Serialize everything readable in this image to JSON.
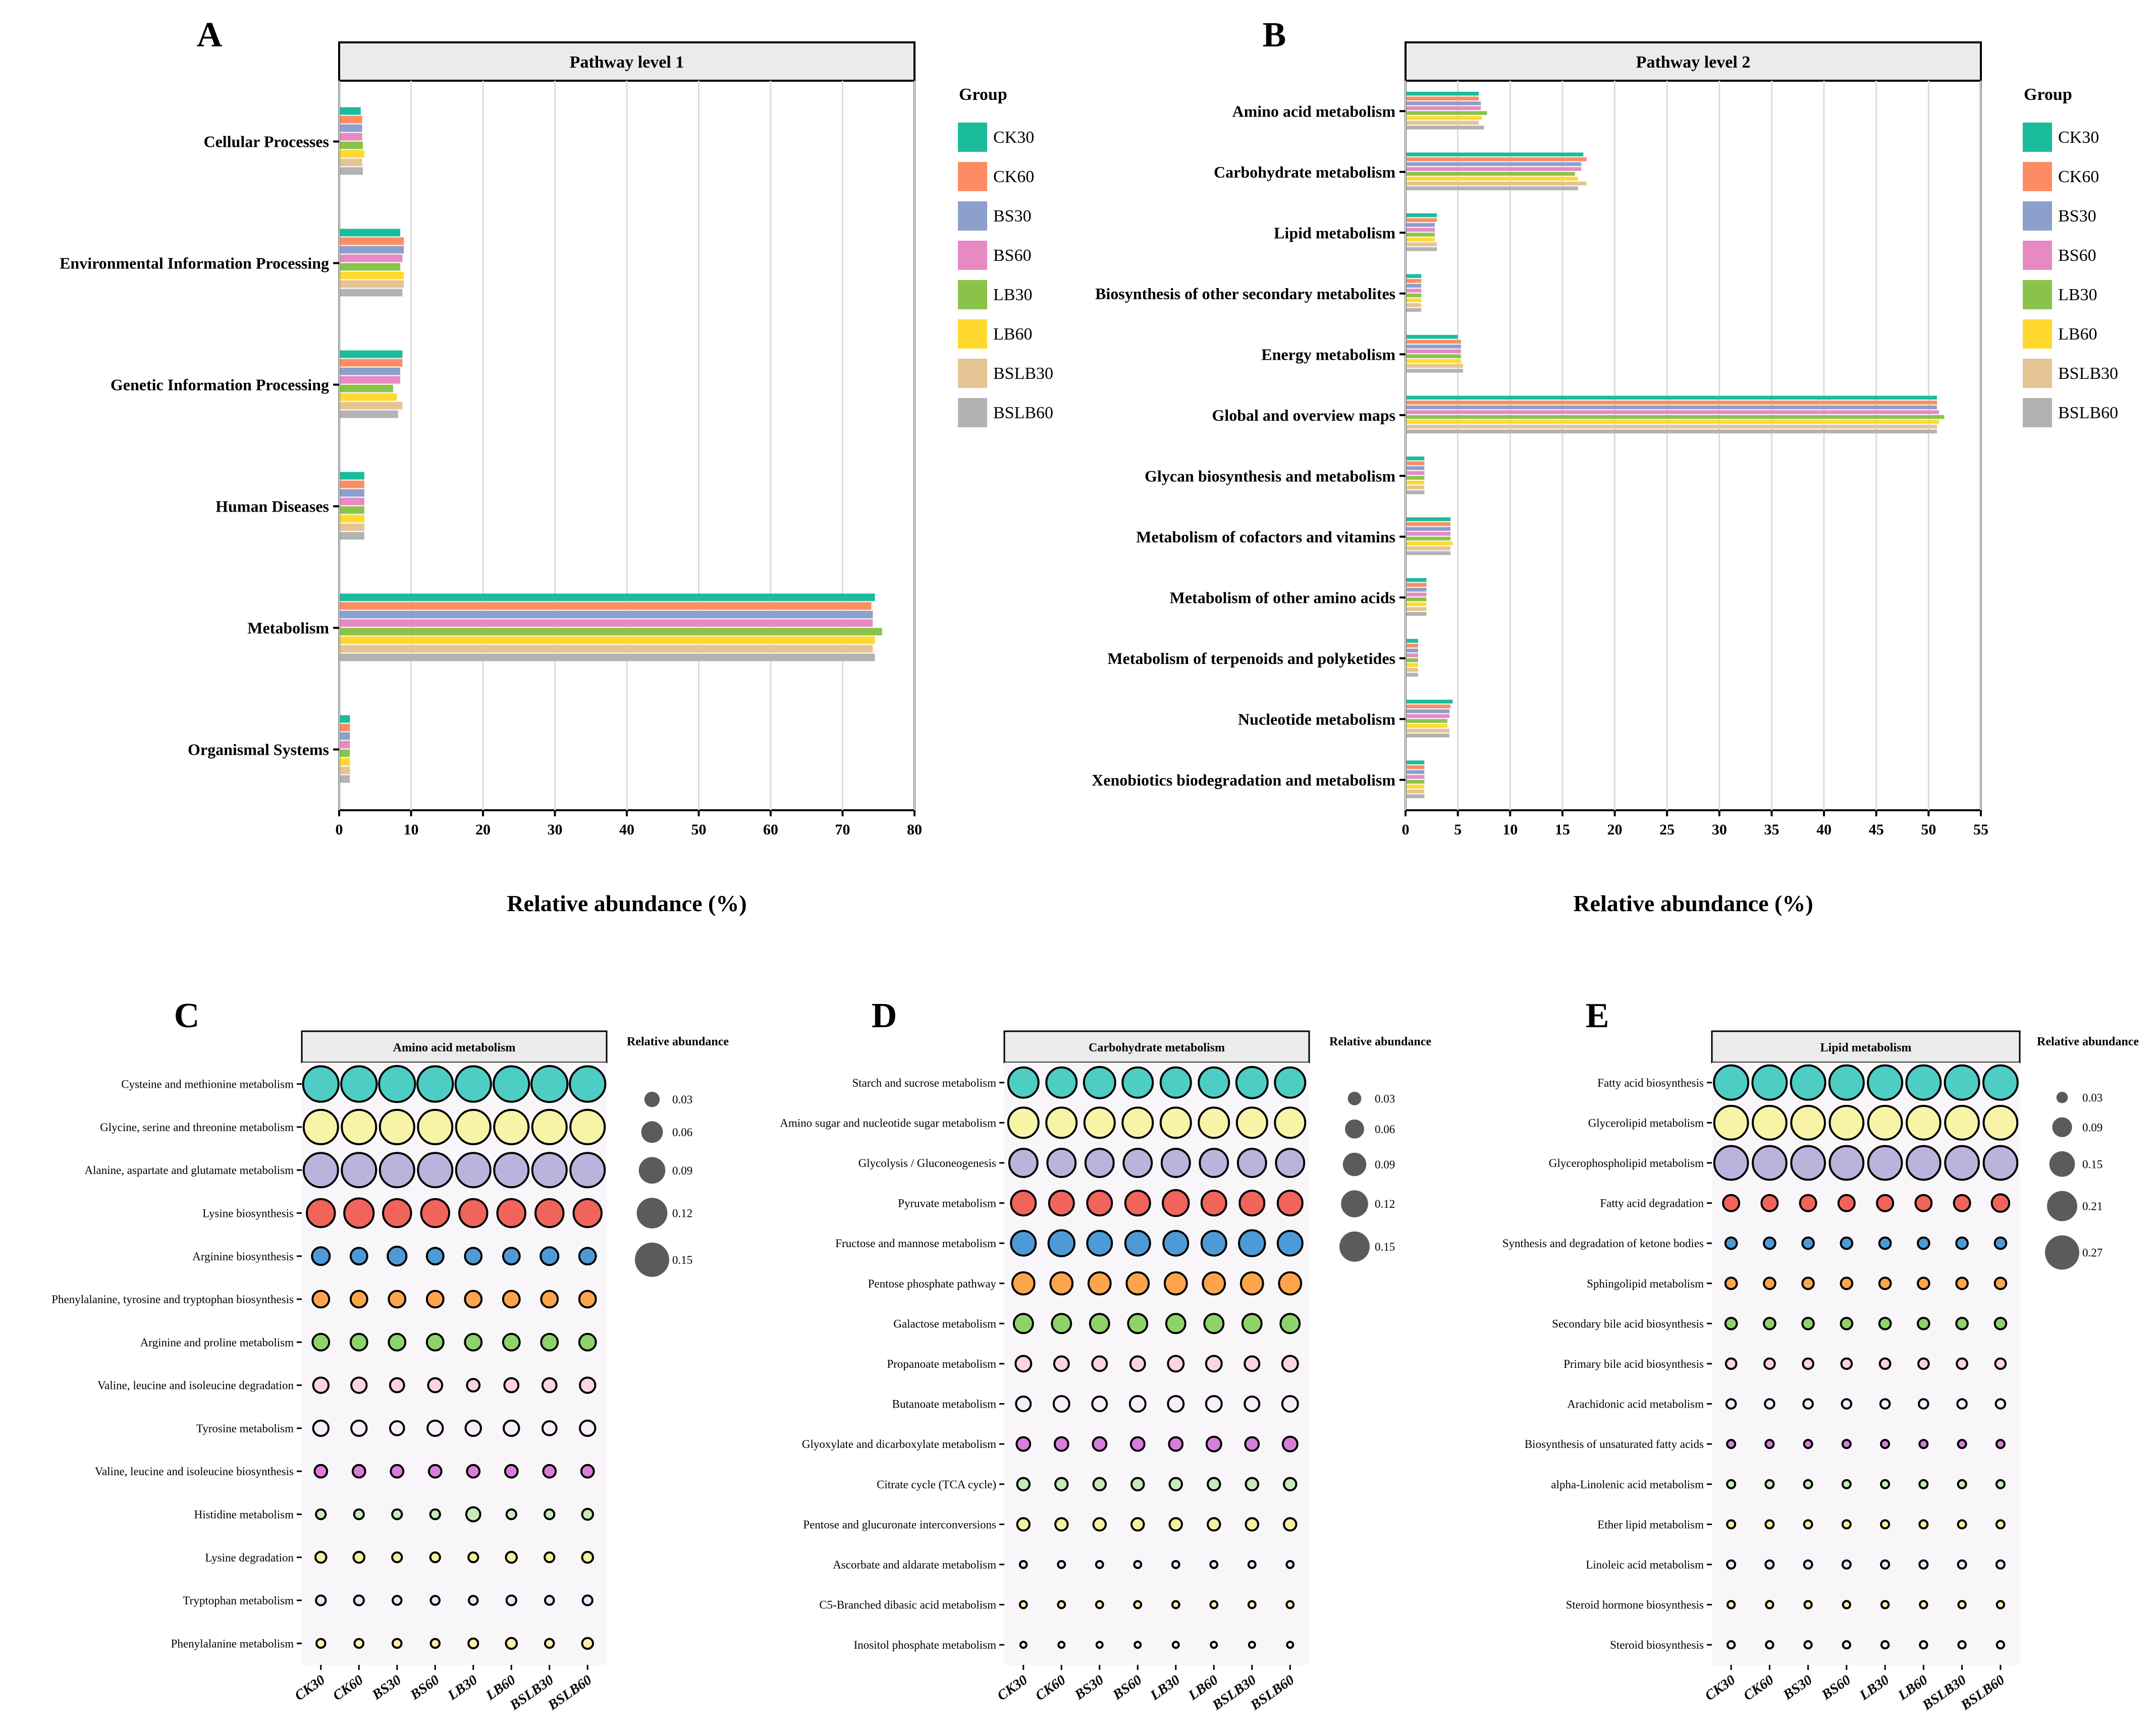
{
  "groups": [
    "CK30",
    "CK60",
    "BS30",
    "BS60",
    "LB30",
    "LB60",
    "BSLB30",
    "BSLB60"
  ],
  "colors": [
    "#1abc9c",
    "#fc8d62",
    "#8da0cb",
    "#e78ac3",
    "#8bc34a",
    "#ffd92f",
    "#e5c494",
    "#b3b3b3"
  ],
  "legend_title": "Group",
  "dot_size_title": "Relative abundance",
  "chart_data": [
    {
      "panel": "A",
      "type": "bar",
      "orientation": "horizontal",
      "title": "Pathway level 1",
      "xlabel": "Relative abundance (%)",
      "xlim": [
        0,
        80
      ],
      "xticks": [
        0,
        10,
        20,
        30,
        40,
        50,
        60,
        70,
        80
      ],
      "categories": [
        "Cellular Processes",
        "Environmental Information Processing",
        "Genetic Information Processing",
        "Human Diseases",
        "Metabolism",
        "Organismal Systems"
      ],
      "series": [
        {
          "name": "CK30",
          "values": [
            3.0,
            8.5,
            8.8,
            3.5,
            74.5,
            1.5
          ]
        },
        {
          "name": "CK60",
          "values": [
            3.2,
            9.0,
            8.8,
            3.5,
            74.0,
            1.5
          ]
        },
        {
          "name": "BS30",
          "values": [
            3.2,
            9.0,
            8.5,
            3.5,
            74.2,
            1.5
          ]
        },
        {
          "name": "BS60",
          "values": [
            3.2,
            8.8,
            8.5,
            3.5,
            74.2,
            1.5
          ]
        },
        {
          "name": "LB30",
          "values": [
            3.3,
            8.5,
            7.5,
            3.5,
            75.5,
            1.5
          ]
        },
        {
          "name": "LB60",
          "values": [
            3.5,
            9.0,
            8.0,
            3.5,
            74.5,
            1.5
          ]
        },
        {
          "name": "BSLB30",
          "values": [
            3.2,
            9.0,
            8.8,
            3.5,
            74.2,
            1.5
          ]
        },
        {
          "name": "BSLB60",
          "values": [
            3.3,
            8.8,
            8.2,
            3.5,
            74.5,
            1.5
          ]
        }
      ]
    },
    {
      "panel": "B",
      "type": "bar",
      "orientation": "horizontal",
      "title": "Pathway level 2",
      "xlabel": "Relative abundance (%)",
      "xlim": [
        0,
        55
      ],
      "xticks": [
        0,
        5,
        10,
        15,
        20,
        25,
        30,
        35,
        40,
        45,
        50,
        55
      ],
      "categories": [
        "Amino acid metabolism",
        "Carbohydrate metabolism",
        "Lipid metabolism",
        "Biosynthesis of other secondary metabolites",
        "Energy metabolism",
        "Global and overview maps",
        "Glycan biosynthesis and metabolism",
        "Metabolism of cofactors and vitamins",
        "Metabolism of other amino acids",
        "Metabolism of terpenoids and polyketides",
        "Nucleotide metabolism",
        "Xenobiotics biodegradation and metabolism"
      ],
      "series": [
        {
          "name": "CK30",
          "values": [
            7.0,
            17.0,
            3.0,
            1.5,
            5.0,
            50.8,
            1.8,
            4.3,
            2.0,
            1.2,
            4.5,
            1.8
          ]
        },
        {
          "name": "CK60",
          "values": [
            7.0,
            17.3,
            3.0,
            1.5,
            5.3,
            50.8,
            1.8,
            4.3,
            2.0,
            1.2,
            4.3,
            1.8
          ]
        },
        {
          "name": "BS30",
          "values": [
            7.2,
            16.8,
            2.8,
            1.5,
            5.3,
            50.8,
            1.8,
            4.3,
            2.0,
            1.2,
            4.2,
            1.8
          ]
        },
        {
          "name": "BS60",
          "values": [
            7.2,
            16.8,
            2.8,
            1.5,
            5.3,
            51.0,
            1.8,
            4.3,
            2.0,
            1.2,
            4.2,
            1.8
          ]
        },
        {
          "name": "LB30",
          "values": [
            7.8,
            16.2,
            2.8,
            1.5,
            5.3,
            51.5,
            1.8,
            4.3,
            2.0,
            1.2,
            4.0,
            1.8
          ]
        },
        {
          "name": "LB60",
          "values": [
            7.3,
            16.5,
            2.8,
            1.5,
            5.3,
            51.0,
            1.8,
            4.5,
            2.0,
            1.2,
            4.0,
            1.8
          ]
        },
        {
          "name": "BSLB30",
          "values": [
            7.0,
            17.3,
            3.0,
            1.5,
            5.5,
            50.8,
            1.8,
            4.3,
            2.0,
            1.2,
            4.2,
            1.8
          ]
        },
        {
          "name": "BSLB60",
          "values": [
            7.5,
            16.5,
            3.0,
            1.5,
            5.5,
            50.8,
            1.8,
            4.3,
            2.0,
            1.2,
            4.2,
            1.8
          ]
        }
      ]
    },
    {
      "panel": "C",
      "type": "scatter",
      "subtype": "dot-matrix",
      "title": "Amino acid metabolism",
      "size_legend": [
        "0.03",
        "0.06",
        "0.09",
        "0.12",
        "0.15"
      ],
      "size_legend_values": [
        0.03,
        0.06,
        0.09,
        0.12,
        0.15
      ],
      "rows": [
        {
          "label": "Cysteine and methionine metabolism",
          "color": "#4ecdc4",
          "values": [
            0.16,
            0.16,
            0.165,
            0.16,
            0.16,
            0.16,
            0.165,
            0.16
          ]
        },
        {
          "label": "Glycine, serine and threonine metabolism",
          "color": "#f7f4a8",
          "values": [
            0.15,
            0.15,
            0.15,
            0.15,
            0.15,
            0.15,
            0.15,
            0.15
          ]
        },
        {
          "label": "Alanine, aspartate and glutamate metabolism",
          "color": "#bcb3dd",
          "values": [
            0.15,
            0.15,
            0.15,
            0.15,
            0.15,
            0.15,
            0.15,
            0.15
          ]
        },
        {
          "label": "Lysine biosynthesis",
          "color": "#f0645c",
          "values": [
            0.1,
            0.11,
            0.1,
            0.1,
            0.1,
            0.1,
            0.1,
            0.1
          ]
        },
        {
          "label": "Arginine biosynthesis",
          "color": "#4d9ad6",
          "values": [
            0.04,
            0.035,
            0.045,
            0.035,
            0.035,
            0.035,
            0.04,
            0.035
          ]
        },
        {
          "label": "Phenylalanine, tyrosine and tryptophan biosynthesis",
          "color": "#fda54c",
          "values": [
            0.035,
            0.035,
            0.035,
            0.035,
            0.035,
            0.035,
            0.035,
            0.035
          ]
        },
        {
          "label": "Arginine and proline metabolism",
          "color": "#8ed36a",
          "values": [
            0.035,
            0.035,
            0.035,
            0.035,
            0.035,
            0.035,
            0.035,
            0.035
          ]
        },
        {
          "label": "Valine, leucine and isoleucine degradation",
          "color": "#fbd3e3",
          "values": [
            0.03,
            0.03,
            0.025,
            0.025,
            0.02,
            0.025,
            0.025,
            0.03
          ]
        },
        {
          "label": "Tyrosine metabolism",
          "color": "#f6eefa",
          "values": [
            0.03,
            0.03,
            0.025,
            0.03,
            0.03,
            0.03,
            0.025,
            0.03
          ]
        },
        {
          "label": "Valine, leucine and isoleucine biosynthesis",
          "color": "#d97ddb",
          "values": [
            0.02,
            0.02,
            0.02,
            0.02,
            0.02,
            0.02,
            0.02,
            0.02
          ]
        },
        {
          "label": "Histidine metabolism",
          "color": "#c5ebb8",
          "values": [
            0.012,
            0.012,
            0.012,
            0.012,
            0.025,
            0.012,
            0.012,
            0.015
          ]
        },
        {
          "label": "Lysine degradation",
          "color": "#f3f09e",
          "values": [
            0.015,
            0.015,
            0.012,
            0.012,
            0.012,
            0.015,
            0.012,
            0.015
          ]
        },
        {
          "label": "Tryptophan metabolism",
          "color": "#dfe9ff",
          "values": [
            0.012,
            0.012,
            0.01,
            0.01,
            0.01,
            0.012,
            0.01,
            0.012
          ]
        },
        {
          "label": "Phenylalanine metabolism",
          "color": "#fff0a8",
          "values": [
            0.01,
            0.01,
            0.01,
            0.01,
            0.012,
            0.015,
            0.01,
            0.015
          ]
        }
      ]
    },
    {
      "panel": "D",
      "type": "scatter",
      "subtype": "dot-matrix",
      "title": "Carbohydrate metabolism",
      "size_legend": [
        "0.03",
        "0.06",
        "0.09",
        "0.12",
        "0.15"
      ],
      "size_legend_values": [
        0.03,
        0.06,
        0.09,
        0.12,
        0.15
      ],
      "rows": [
        {
          "label": "Starch and sucrose metabolism",
          "color": "#4ecdc4",
          "values": [
            0.15,
            0.15,
            0.16,
            0.15,
            0.15,
            0.15,
            0.16,
            0.15
          ]
        },
        {
          "label": "Amino sugar and nucleotide sugar metabolism",
          "color": "#f7f4a8",
          "values": [
            0.15,
            0.15,
            0.15,
            0.15,
            0.15,
            0.15,
            0.15,
            0.15
          ]
        },
        {
          "label": "Glycolysis / Gluconeogenesis",
          "color": "#bcb3dd",
          "values": [
            0.13,
            0.13,
            0.13,
            0.13,
            0.13,
            0.13,
            0.13,
            0.13
          ]
        },
        {
          "label": "Pyruvate metabolism",
          "color": "#f0645c",
          "values": [
            0.1,
            0.1,
            0.1,
            0.1,
            0.11,
            0.1,
            0.1,
            0.1
          ]
        },
        {
          "label": "Fructose and mannose metabolism",
          "color": "#4d9ad6",
          "values": [
            0.1,
            0.11,
            0.1,
            0.1,
            0.1,
            0.1,
            0.11,
            0.1
          ]
        },
        {
          "label": "Pentose phosphate pathway",
          "color": "#fda54c",
          "values": [
            0.08,
            0.08,
            0.08,
            0.08,
            0.08,
            0.08,
            0.08,
            0.08
          ]
        },
        {
          "label": "Galactose metabolism",
          "color": "#8ed36a",
          "values": [
            0.06,
            0.06,
            0.06,
            0.06,
            0.06,
            0.06,
            0.06,
            0.06
          ]
        },
        {
          "label": "Propanoate metabolism",
          "color": "#fbd3e3",
          "values": [
            0.04,
            0.035,
            0.035,
            0.035,
            0.04,
            0.04,
            0.035,
            0.04
          ]
        },
        {
          "label": "Butanoate metabolism",
          "color": "#f6eefa",
          "values": [
            0.035,
            0.04,
            0.035,
            0.04,
            0.04,
            0.04,
            0.035,
            0.04
          ]
        },
        {
          "label": "Glyoxylate and dicarboxylate metabolism",
          "color": "#d97ddb",
          "values": [
            0.03,
            0.03,
            0.03,
            0.03,
            0.03,
            0.035,
            0.03,
            0.035
          ]
        },
        {
          "label": "Citrate cycle (TCA cycle)",
          "color": "#c5ebb8",
          "values": [
            0.025,
            0.025,
            0.025,
            0.025,
            0.025,
            0.025,
            0.025,
            0.025
          ]
        },
        {
          "label": "Pentose and glucuronate interconversions",
          "color": "#f3f09e",
          "values": [
            0.025,
            0.025,
            0.025,
            0.025,
            0.025,
            0.025,
            0.025,
            0.025
          ]
        },
        {
          "label": "Ascorbate and aldarate metabolism",
          "color": "#dfe9ff",
          "values": [
            0.008,
            0.008,
            0.008,
            0.008,
            0.008,
            0.008,
            0.008,
            0.008
          ]
        },
        {
          "label": "C5-Branched dibasic acid metabolism",
          "color": "#fff0a8",
          "values": [
            0.008,
            0.008,
            0.008,
            0.008,
            0.008,
            0.008,
            0.008,
            0.008
          ]
        },
        {
          "label": "Inositol phosphate metabolism",
          "color": "#eef8ee",
          "values": [
            0.006,
            0.006,
            0.006,
            0.006,
            0.006,
            0.006,
            0.006,
            0.006
          ]
        }
      ]
    },
    {
      "panel": "E",
      "type": "scatter",
      "subtype": "dot-matrix",
      "title": "Lipid metabolism",
      "size_legend": [
        "0.03",
        "0.09",
        "0.15",
        "0.21",
        "0.27"
      ],
      "size_legend_values": [
        0.03,
        0.09,
        0.15,
        0.21,
        0.27
      ],
      "rows": [
        {
          "label": "Fatty acid biosynthesis",
          "color": "#4ecdc4",
          "values": [
            0.27,
            0.27,
            0.27,
            0.27,
            0.27,
            0.27,
            0.27,
            0.27
          ]
        },
        {
          "label": "Glycerolipid metabolism",
          "color": "#f7f4a8",
          "values": [
            0.26,
            0.26,
            0.26,
            0.26,
            0.26,
            0.26,
            0.26,
            0.26
          ]
        },
        {
          "label": "Glycerophospholipid metabolism",
          "color": "#bcb3dd",
          "values": [
            0.26,
            0.26,
            0.26,
            0.26,
            0.26,
            0.26,
            0.26,
            0.26
          ]
        },
        {
          "label": "Fatty acid degradation",
          "color": "#f0645c",
          "values": [
            0.06,
            0.06,
            0.06,
            0.06,
            0.06,
            0.06,
            0.06,
            0.07
          ]
        },
        {
          "label": "Synthesis and degradation of ketone bodies",
          "color": "#4d9ad6",
          "values": [
            0.03,
            0.03,
            0.03,
            0.03,
            0.03,
            0.03,
            0.03,
            0.03
          ]
        },
        {
          "label": "Sphingolipid metabolism",
          "color": "#fda54c",
          "values": [
            0.03,
            0.03,
            0.03,
            0.03,
            0.03,
            0.03,
            0.03,
            0.03
          ]
        },
        {
          "label": "Secondary bile acid biosynthesis",
          "color": "#8ed36a",
          "values": [
            0.03,
            0.03,
            0.03,
            0.03,
            0.03,
            0.03,
            0.03,
            0.03
          ]
        },
        {
          "label": "Primary bile acid biosynthesis",
          "color": "#fbd3e3",
          "values": [
            0.025,
            0.025,
            0.025,
            0.025,
            0.025,
            0.025,
            0.025,
            0.025
          ]
        },
        {
          "label": "Arachidonic acid metabolism",
          "color": "#f6eefa",
          "values": [
            0.02,
            0.02,
            0.02,
            0.02,
            0.02,
            0.02,
            0.02,
            0.02
          ]
        },
        {
          "label": "Biosynthesis of unsaturated fatty acids",
          "color": "#d97ddb",
          "values": [
            0.015,
            0.015,
            0.015,
            0.015,
            0.015,
            0.015,
            0.015,
            0.015
          ]
        },
        {
          "label": "alpha-Linolenic acid metabolism",
          "color": "#c5ebb8",
          "values": [
            0.015,
            0.015,
            0.015,
            0.015,
            0.015,
            0.015,
            0.015,
            0.015
          ]
        },
        {
          "label": "Ether lipid metabolism",
          "color": "#f3f09e",
          "values": [
            0.015,
            0.015,
            0.015,
            0.015,
            0.015,
            0.015,
            0.015,
            0.015
          ]
        },
        {
          "label": "Linoleic acid metabolism",
          "color": "#dfe9ff",
          "values": [
            0.015,
            0.015,
            0.015,
            0.015,
            0.015,
            0.015,
            0.015,
            0.015
          ]
        },
        {
          "label": "Steroid hormone biosynthesis",
          "color": "#fff0a8",
          "values": [
            0.012,
            0.012,
            0.012,
            0.012,
            0.012,
            0.012,
            0.012,
            0.012
          ]
        },
        {
          "label": "Steroid biosynthesis",
          "color": "#eef8ee",
          "values": [
            0.012,
            0.012,
            0.012,
            0.012,
            0.012,
            0.012,
            0.012,
            0.012
          ]
        }
      ]
    }
  ]
}
